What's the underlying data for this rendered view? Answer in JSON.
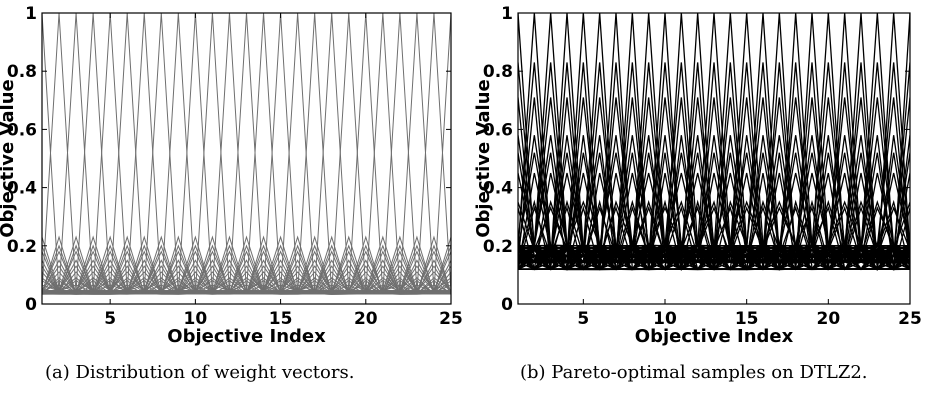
{
  "chart_data": [
    {
      "type": "line",
      "caption": "(a) Distribution of weight vectors.",
      "xlabel": "Objective Index",
      "ylabel": "Objective Value",
      "xlim": [
        1,
        25
      ],
      "ylim": [
        0,
        1
      ],
      "xticks": [
        5,
        10,
        15,
        20,
        25
      ],
      "yticks": [
        0,
        0.2,
        0.4,
        0.6,
        0.8,
        1
      ],
      "ytick_labels": [
        "0",
        "0.2",
        "0.4",
        "0.6",
        "0.8",
        "1"
      ],
      "n_objectives": 25,
      "grid": false,
      "line_color": "#6f6f6f",
      "pattern": "each weight vector is near-uniform at a baseline value with spikes at a few objectives",
      "baselines": [
        0.035,
        0.04,
        0.045
      ],
      "spike_levels": [
        1.0,
        0.23,
        0.2,
        0.18,
        0.15,
        0.13,
        0.11,
        0.09,
        0.08,
        0.065
      ]
    },
    {
      "type": "line",
      "caption": "(b) Pareto-optimal samples on DTLZ2.",
      "xlabel": "Objective Index",
      "ylabel": "Objective Value",
      "xlim": [
        1,
        25
      ],
      "ylim": [
        0,
        1
      ],
      "xticks": [
        5,
        10,
        15,
        20,
        25
      ],
      "yticks": [
        0,
        0.2,
        0.4,
        0.6,
        0.8,
        1
      ],
      "ytick_labels": [
        "0",
        "0.2",
        "0.4",
        "0.6",
        "0.8",
        "1"
      ],
      "n_objectives": 25,
      "grid": false,
      "line_color": "#000000",
      "pattern": "normalized Pareto-optimal points: near-flat baselines with spikes at a few objectives",
      "baselines": [
        0.12,
        0.145,
        0.165,
        0.185,
        0.2
      ],
      "spike_levels": [
        1.0,
        0.83,
        0.71,
        0.58,
        0.52,
        0.45,
        0.35,
        0.33
      ]
    }
  ]
}
